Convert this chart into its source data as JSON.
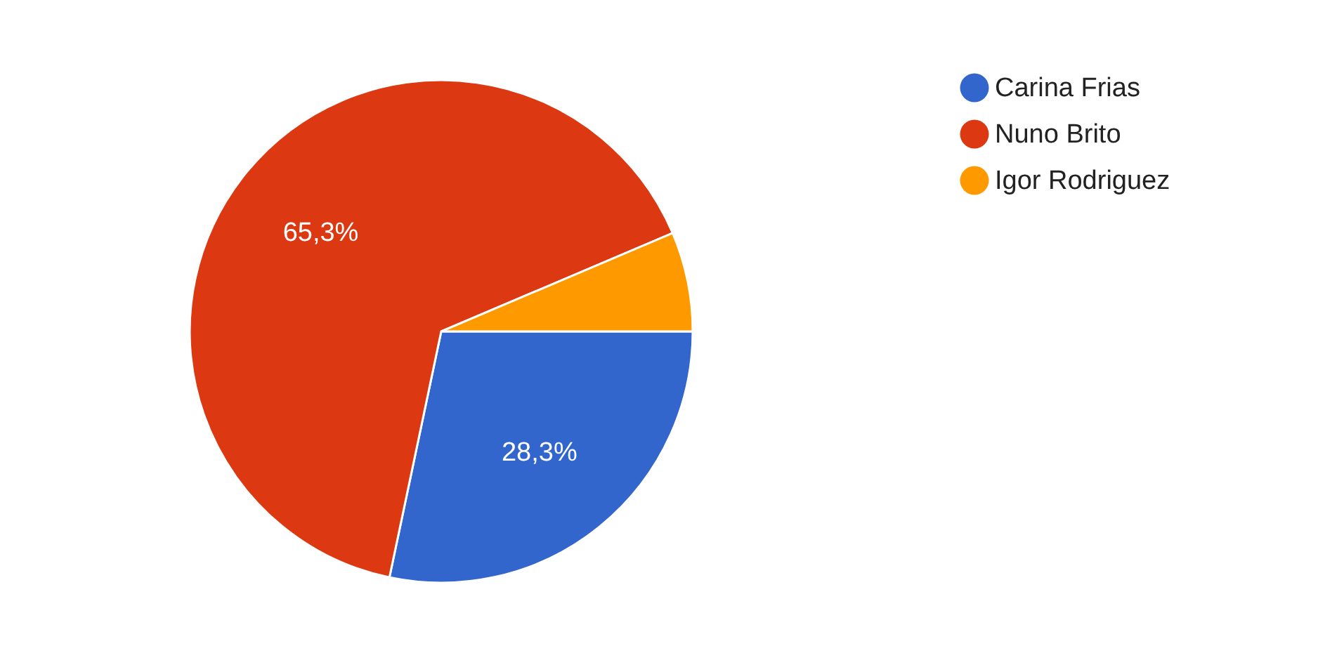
{
  "chart_data": {
    "type": "pie",
    "categories": [
      "Carina Frias",
      "Nuno Brito",
      "Igor Rodriguez"
    ],
    "values": [
      28.3,
      65.3,
      6.4
    ],
    "colors": [
      "#3366cc",
      "#dc3912",
      "#ff9900"
    ],
    "value_labels": [
      "28,3%",
      "65,3%",
      null
    ],
    "legend": "right"
  }
}
